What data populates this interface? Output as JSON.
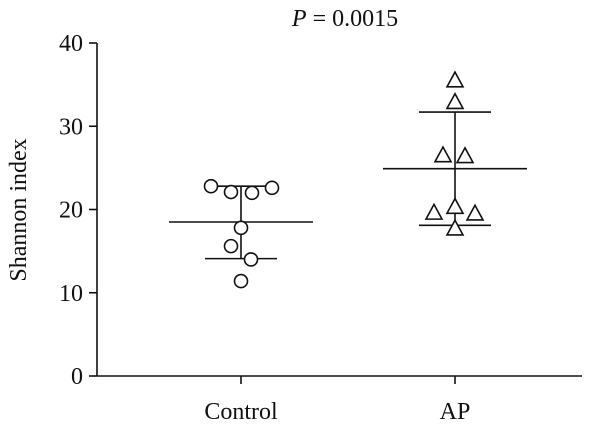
{
  "chart_data": {
    "type": "scatter",
    "title": "P = 0.0015",
    "title_italic_prefix": "P",
    "title_rest": " = 0.0015",
    "xlabel": "",
    "ylabel": "Shannon index",
    "ylim": [
      0,
      40
    ],
    "yticks": [
      0,
      10,
      20,
      30,
      40
    ],
    "grid": false,
    "categories": [
      "Control",
      "AP"
    ],
    "series": [
      {
        "category": "Control",
        "marker": "circle",
        "values": [
          22.8,
          22.6,
          22.0,
          22.1,
          17.8,
          15.6,
          14.0,
          11.4
        ],
        "mean": 18.5,
        "sd_upper": 22.8,
        "sd_lower": 14.1
      },
      {
        "category": "AP",
        "marker": "triangle",
        "values": [
          35.5,
          32.9,
          26.5,
          26.4,
          20.3,
          19.6,
          19.5,
          17.7
        ],
        "mean": 24.9,
        "sd_upper": 31.7,
        "sd_lower": 18.1
      }
    ]
  }
}
